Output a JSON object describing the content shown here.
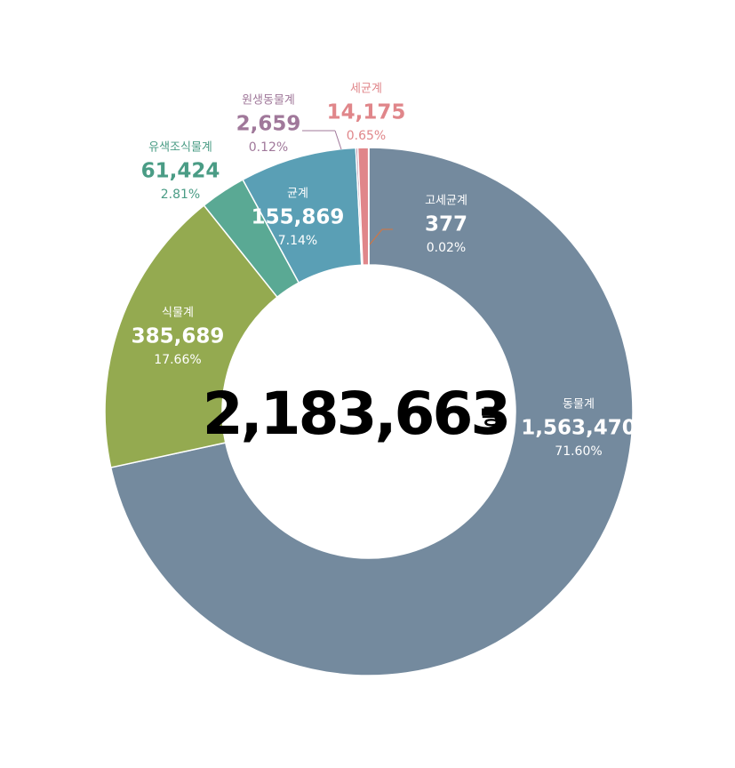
{
  "chart_data": {
    "type": "donut",
    "categories": [
      "동물계",
      "식물계",
      "유색조식물계",
      "균계",
      "원생동물계",
      "세균계",
      "고세균계"
    ],
    "values": [
      1563470,
      385689,
      61424,
      155869,
      2659,
      14175,
      377
    ],
    "value_labels": [
      "1,563,470",
      "385,689",
      "61,424",
      "155,869",
      "2,659",
      "14,175",
      "377"
    ],
    "percents": [
      71.6,
      17.66,
      2.81,
      7.14,
      0.12,
      0.65,
      0.02
    ],
    "percent_labels": [
      "71.60%",
      "17.66%",
      "2.81%",
      "7.14%",
      "0.12%",
      "0.65%",
      "0.02%"
    ],
    "colors": [
      "#748a9e",
      "#94aa50",
      "#5aa994",
      "#5a9fb5",
      "#a0789a",
      "#e0868a",
      "#d9743c"
    ],
    "total": {
      "value": 2183663,
      "label": "2,183,663"
    },
    "total_unit": "종"
  }
}
